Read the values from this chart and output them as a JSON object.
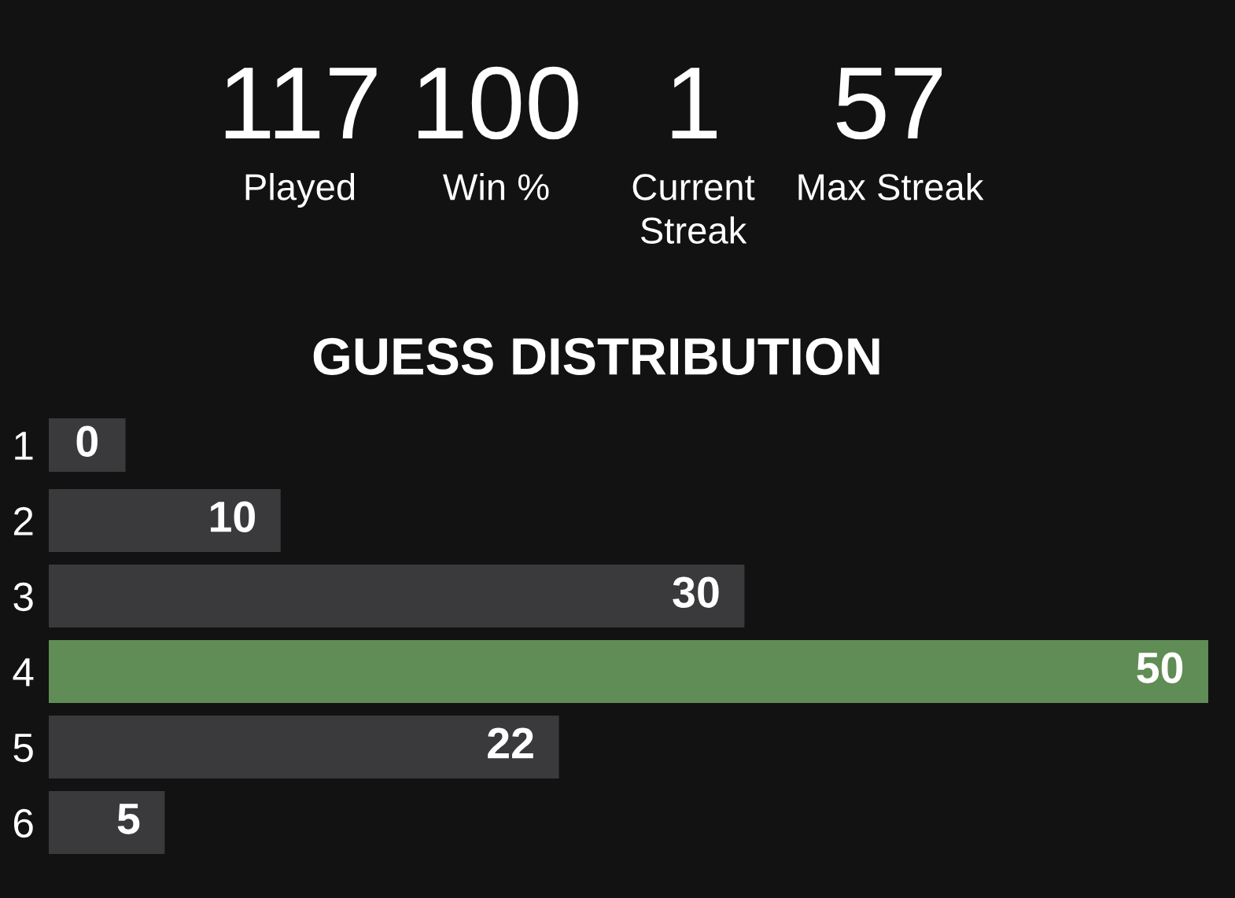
{
  "chart_data": [
    {
      "type": "other",
      "categories": [
        "Played",
        "Win %",
        "Current Streak",
        "Max Streak"
      ],
      "values": [
        117,
        100,
        1,
        57
      ],
      "data_labels": true
    },
    {
      "type": "bar",
      "orientation": "horizontal",
      "title": "GUESS DISTRIBUTION",
      "categories": [
        "1",
        "2",
        "3",
        "4",
        "5",
        "6"
      ],
      "values": [
        0,
        10,
        30,
        50,
        22,
        5
      ],
      "colors": [
        "#3a3a3c",
        "#3a3a3c",
        "#3a3a3c",
        "#608c56",
        "#3a3a3c",
        "#3a3a3c"
      ],
      "data_labels": true,
      "tick_labels": "y"
    }
  ]
}
